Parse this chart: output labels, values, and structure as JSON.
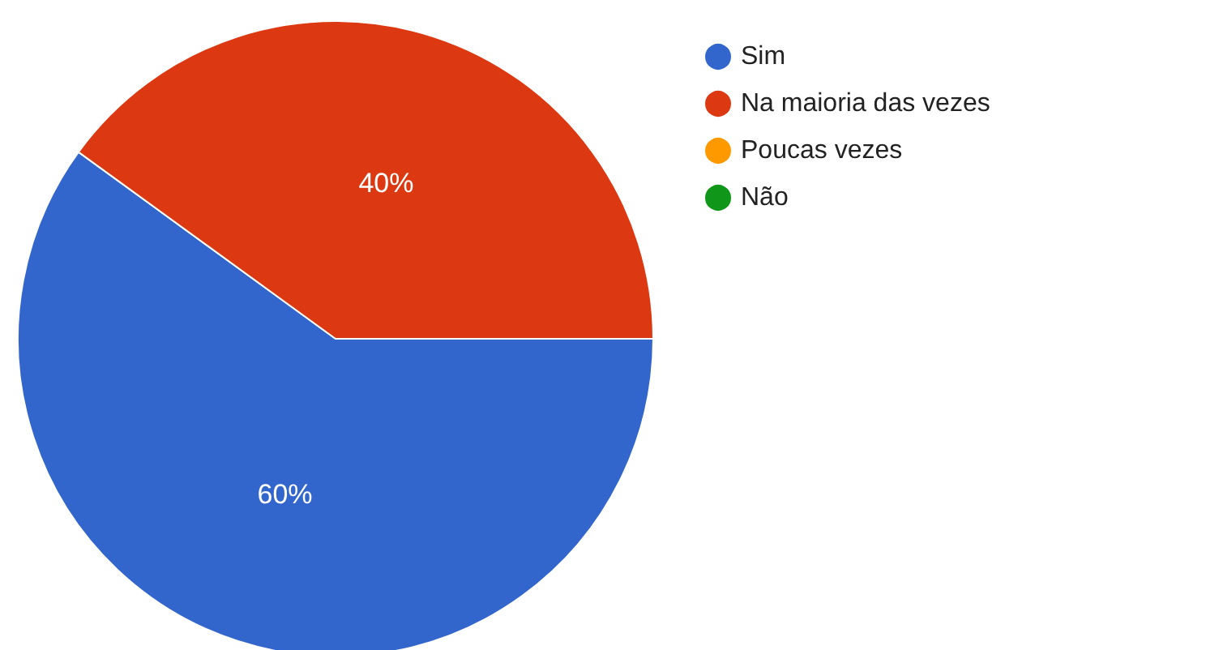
{
  "chart_data": {
    "type": "pie",
    "categories": [
      "Sim",
      "Na maioria das vezes",
      "Poucas vezes",
      "Não"
    ],
    "values": [
      60,
      40,
      0,
      0
    ],
    "value_labels": [
      "60%",
      "40%",
      null,
      null
    ],
    "colors": [
      "#3366cc",
      "#dc3912",
      "#ff9900",
      "#109618"
    ],
    "legend": "top right"
  }
}
